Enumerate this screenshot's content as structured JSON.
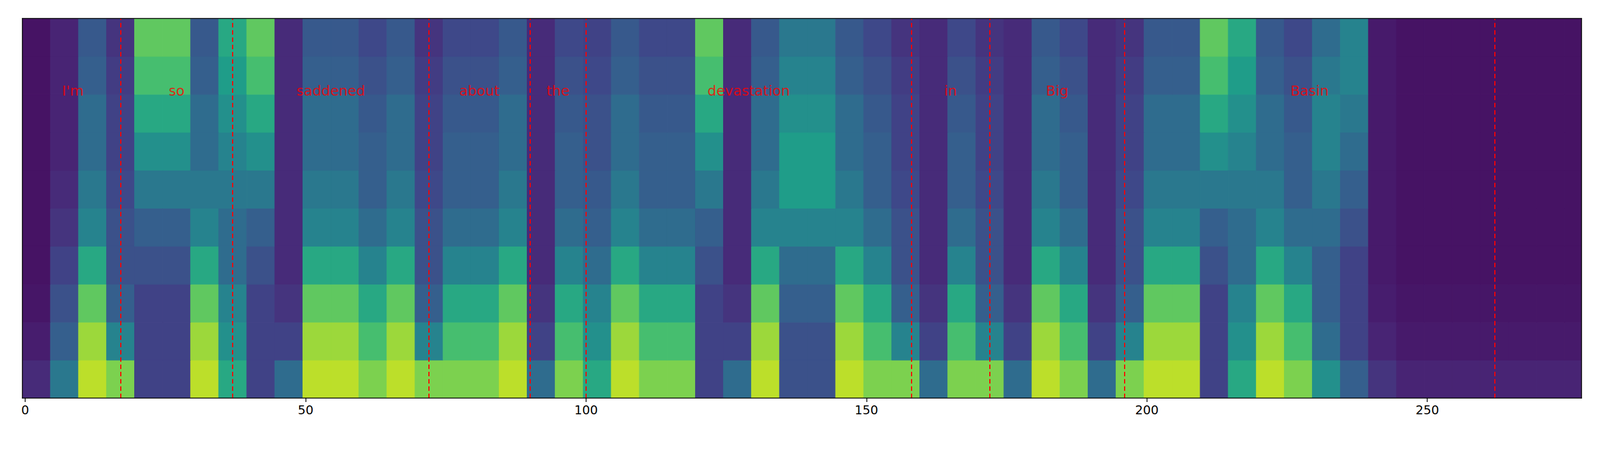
{
  "chart_data": {
    "type": "heatmap",
    "color": "viridis",
    "grid": false,
    "tick_labels": "x",
    "xlim": [
      -0.5,
      277.5
    ],
    "xticks": [
      0,
      50,
      100,
      150,
      200,
      250
    ],
    "ylim": [
      0,
      80
    ],
    "color_range": [
      0,
      1
    ],
    "x_bins": [
      -0.5,
      4.5,
      9.5,
      14.5,
      19.5,
      24.5,
      29.5,
      34.5,
      39.5,
      44.5,
      49.5,
      54.5,
      59.5,
      64.5,
      69.5,
      74.5,
      79.5,
      84.5,
      89.5,
      94.5,
      99.5,
      104.5,
      109.5,
      114.5,
      119.5,
      124.5,
      129.5,
      134.5,
      139.5,
      144.5,
      149.5,
      154.5,
      159.5,
      164.5,
      169.5,
      174.5,
      179.5,
      184.5,
      189.5,
      194.5,
      199.5,
      204.5,
      209.5,
      214.5,
      219.5,
      224.5,
      229.5,
      234.5,
      239.5,
      244.5,
      249.5,
      254.5,
      259.5,
      264.5,
      269.5,
      274.5,
      277.5
    ],
    "y_bins": [
      0,
      8,
      16,
      24,
      32,
      40,
      48,
      56,
      64,
      72,
      80
    ],
    "cells": [
      [
        0.12,
        0.4,
        0.9,
        0.8,
        0.2,
        0.2,
        0.9,
        0.6,
        0.2,
        0.35,
        0.9,
        0.9,
        0.8,
        0.9,
        0.8,
        0.8,
        0.8,
        0.9,
        0.35,
        0.8,
        0.6,
        0.9,
        0.8,
        0.8,
        0.2,
        0.35,
        0.9,
        0.25,
        0.25,
        0.9,
        0.8,
        0.8,
        0.35,
        0.8,
        0.8,
        0.35,
        0.9,
        0.8,
        0.35,
        0.8,
        0.9,
        0.9,
        0.2,
        0.6,
        0.9,
        0.8,
        0.5,
        0.3,
        0.15,
        0.1,
        0.1,
        0.1,
        0.1,
        0.1,
        0.1,
        0.1
      ],
      [
        0.08,
        0.3,
        0.85,
        0.45,
        0.2,
        0.2,
        0.85,
        0.5,
        0.2,
        0.2,
        0.85,
        0.85,
        0.7,
        0.85,
        0.45,
        0.7,
        0.7,
        0.85,
        0.2,
        0.7,
        0.5,
        0.85,
        0.7,
        0.7,
        0.2,
        0.2,
        0.85,
        0.25,
        0.25,
        0.85,
        0.7,
        0.45,
        0.2,
        0.7,
        0.45,
        0.2,
        0.85,
        0.7,
        0.2,
        0.45,
        0.85,
        0.85,
        0.2,
        0.5,
        0.85,
        0.7,
        0.35,
        0.2,
        0.1,
        0.07,
        0.07,
        0.07,
        0.07,
        0.07,
        0.07,
        0.07
      ],
      [
        0.06,
        0.25,
        0.75,
        0.3,
        0.2,
        0.2,
        0.75,
        0.45,
        0.2,
        0.15,
        0.75,
        0.75,
        0.6,
        0.75,
        0.3,
        0.6,
        0.6,
        0.75,
        0.15,
        0.6,
        0.45,
        0.75,
        0.6,
        0.6,
        0.2,
        0.15,
        0.75,
        0.3,
        0.3,
        0.75,
        0.6,
        0.3,
        0.15,
        0.6,
        0.3,
        0.15,
        0.75,
        0.6,
        0.15,
        0.3,
        0.75,
        0.75,
        0.2,
        0.45,
        0.75,
        0.6,
        0.3,
        0.2,
        0.08,
        0.06,
        0.06,
        0.06,
        0.06,
        0.06,
        0.06,
        0.06
      ],
      [
        0.05,
        0.2,
        0.6,
        0.25,
        0.25,
        0.25,
        0.6,
        0.35,
        0.25,
        0.12,
        0.6,
        0.6,
        0.45,
        0.6,
        0.25,
        0.45,
        0.45,
        0.6,
        0.12,
        0.45,
        0.35,
        0.6,
        0.45,
        0.45,
        0.25,
        0.12,
        0.6,
        0.35,
        0.35,
        0.6,
        0.45,
        0.25,
        0.12,
        0.45,
        0.25,
        0.12,
        0.6,
        0.45,
        0.12,
        0.25,
        0.6,
        0.6,
        0.25,
        0.35,
        0.6,
        0.45,
        0.3,
        0.2,
        0.07,
        0.05,
        0.05,
        0.05,
        0.05,
        0.05,
        0.05,
        0.05
      ],
      [
        0.05,
        0.15,
        0.45,
        0.25,
        0.3,
        0.3,
        0.45,
        0.35,
        0.3,
        0.12,
        0.45,
        0.45,
        0.35,
        0.45,
        0.25,
        0.35,
        0.35,
        0.45,
        0.12,
        0.35,
        0.3,
        0.45,
        0.35,
        0.35,
        0.3,
        0.12,
        0.45,
        0.45,
        0.45,
        0.45,
        0.35,
        0.25,
        0.12,
        0.35,
        0.25,
        0.12,
        0.45,
        0.35,
        0.12,
        0.25,
        0.45,
        0.45,
        0.3,
        0.35,
        0.45,
        0.35,
        0.35,
        0.25,
        0.07,
        0.05,
        0.05,
        0.05,
        0.05,
        0.05,
        0.05,
        0.05
      ],
      [
        0.05,
        0.12,
        0.4,
        0.22,
        0.4,
        0.4,
        0.4,
        0.4,
        0.4,
        0.12,
        0.4,
        0.4,
        0.3,
        0.4,
        0.22,
        0.3,
        0.3,
        0.4,
        0.12,
        0.3,
        0.28,
        0.4,
        0.3,
        0.3,
        0.4,
        0.12,
        0.4,
        0.55,
        0.55,
        0.4,
        0.3,
        0.22,
        0.12,
        0.3,
        0.22,
        0.12,
        0.4,
        0.3,
        0.12,
        0.22,
        0.4,
        0.4,
        0.4,
        0.4,
        0.4,
        0.3,
        0.4,
        0.3,
        0.07,
        0.05,
        0.05,
        0.05,
        0.05,
        0.05,
        0.05,
        0.05
      ],
      [
        0.05,
        0.1,
        0.35,
        0.2,
        0.5,
        0.5,
        0.35,
        0.45,
        0.5,
        0.12,
        0.35,
        0.35,
        0.3,
        0.35,
        0.2,
        0.3,
        0.3,
        0.35,
        0.12,
        0.3,
        0.25,
        0.35,
        0.3,
        0.3,
        0.5,
        0.12,
        0.35,
        0.55,
        0.55,
        0.35,
        0.3,
        0.2,
        0.12,
        0.3,
        0.2,
        0.12,
        0.35,
        0.3,
        0.12,
        0.2,
        0.35,
        0.35,
        0.5,
        0.45,
        0.35,
        0.3,
        0.45,
        0.35,
        0.07,
        0.05,
        0.05,
        0.05,
        0.05,
        0.05,
        0.05,
        0.05
      ],
      [
        0.05,
        0.1,
        0.35,
        0.2,
        0.6,
        0.6,
        0.35,
        0.5,
        0.6,
        0.12,
        0.35,
        0.35,
        0.28,
        0.35,
        0.2,
        0.28,
        0.28,
        0.35,
        0.12,
        0.28,
        0.25,
        0.35,
        0.28,
        0.28,
        0.6,
        0.12,
        0.35,
        0.5,
        0.5,
        0.35,
        0.28,
        0.2,
        0.12,
        0.28,
        0.2,
        0.12,
        0.35,
        0.28,
        0.12,
        0.2,
        0.35,
        0.35,
        0.6,
        0.5,
        0.35,
        0.28,
        0.45,
        0.4,
        0.07,
        0.05,
        0.05,
        0.05,
        0.05,
        0.05,
        0.05,
        0.05
      ],
      [
        0.05,
        0.1,
        0.3,
        0.18,
        0.7,
        0.7,
        0.3,
        0.55,
        0.7,
        0.12,
        0.3,
        0.3,
        0.25,
        0.3,
        0.18,
        0.25,
        0.25,
        0.3,
        0.12,
        0.25,
        0.22,
        0.3,
        0.25,
        0.25,
        0.7,
        0.12,
        0.3,
        0.45,
        0.45,
        0.3,
        0.25,
        0.18,
        0.12,
        0.25,
        0.18,
        0.12,
        0.3,
        0.25,
        0.12,
        0.18,
        0.3,
        0.3,
        0.7,
        0.55,
        0.3,
        0.25,
        0.4,
        0.45,
        0.07,
        0.05,
        0.05,
        0.05,
        0.05,
        0.05,
        0.05,
        0.05
      ],
      [
        0.05,
        0.1,
        0.28,
        0.15,
        0.75,
        0.75,
        0.28,
        0.6,
        0.75,
        0.12,
        0.28,
        0.28,
        0.22,
        0.28,
        0.15,
        0.22,
        0.22,
        0.28,
        0.12,
        0.22,
        0.2,
        0.28,
        0.22,
        0.22,
        0.75,
        0.12,
        0.28,
        0.4,
        0.4,
        0.28,
        0.22,
        0.15,
        0.12,
        0.22,
        0.15,
        0.12,
        0.28,
        0.22,
        0.12,
        0.15,
        0.28,
        0.28,
        0.75,
        0.6,
        0.28,
        0.22,
        0.35,
        0.45,
        0.07,
        0.05,
        0.05,
        0.05,
        0.05,
        0.05,
        0.05,
        0.05
      ]
    ],
    "segments": [
      {
        "label": "I'm",
        "start": 0,
        "end": 17
      },
      {
        "label": "so",
        "start": 17,
        "end": 37
      },
      {
        "label": "saddened",
        "start": 37,
        "end": 72
      },
      {
        "label": "about",
        "start": 72,
        "end": 90
      },
      {
        "label": "the",
        "start": 90,
        "end": 100
      },
      {
        "label": "devastation",
        "start": 100,
        "end": 158
      },
      {
        "label": "in",
        "start": 158,
        "end": 172
      },
      {
        "label": "Big",
        "start": 172,
        "end": 196
      },
      {
        "label": "Basin",
        "start": 196,
        "end": 262
      }
    ]
  }
}
